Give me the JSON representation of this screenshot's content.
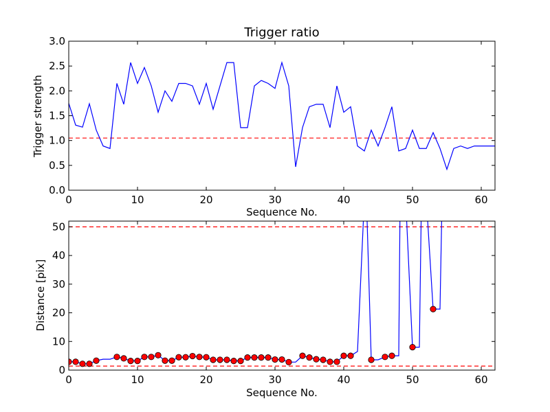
{
  "chart_data": [
    {
      "type": "line",
      "title": "Trigger ratio",
      "xlabel": "Sequence No.",
      "ylabel": "Trigger strength",
      "xlim": [
        0,
        62
      ],
      "ylim": [
        0,
        3.0
      ],
      "xticks": [
        0,
        10,
        20,
        30,
        40,
        50,
        60
      ],
      "yticks": [
        "0.0",
        "0.5",
        "1.0",
        "1.5",
        "2.0",
        "2.5",
        "3.0"
      ],
      "grid": false,
      "series": [
        {
          "color": "#0000ff",
          "x": [
            0,
            1,
            2,
            3,
            4,
            5,
            6,
            7,
            8,
            9,
            10,
            11,
            12,
            13,
            14,
            15,
            16,
            17,
            18,
            19,
            20,
            21,
            22,
            23,
            24,
            25,
            26,
            27,
            28,
            29,
            30,
            31,
            32,
            33,
            34,
            35,
            36,
            37,
            38,
            39,
            40,
            41,
            42,
            43,
            44,
            45,
            46,
            47,
            48,
            49,
            50,
            51,
            52,
            53,
            54,
            55,
            56,
            57,
            58,
            59,
            60,
            61,
            62
          ],
          "y": [
            1.75,
            1.31,
            1.27,
            1.74,
            1.21,
            0.89,
            0.84,
            2.15,
            1.73,
            2.57,
            2.15,
            2.47,
            2.1,
            1.57,
            2.0,
            1.79,
            2.15,
            2.15,
            2.1,
            1.73,
            2.15,
            1.63,
            2.1,
            2.57,
            2.57,
            1.26,
            1.26,
            2.1,
            2.21,
            2.15,
            2.05,
            2.57,
            2.1,
            0.47,
            1.26,
            1.68,
            1.73,
            1.73,
            1.26,
            2.1,
            1.57,
            1.68,
            0.89,
            0.79,
            1.21,
            0.89,
            1.26,
            1.68,
            0.79,
            0.84,
            1.21,
            0.84,
            0.84,
            1.16,
            0.84,
            0.42,
            0.84,
            0.89,
            0.84,
            0.89,
            0.89,
            0.89,
            0.89
          ]
        }
      ],
      "hlines": [
        {
          "y": 1.05,
          "color": "#ff0000",
          "style": "dashed"
        }
      ]
    },
    {
      "type": "line",
      "title": "",
      "xlabel": "Sequence No.",
      "ylabel": "Distance [pix]",
      "xlim": [
        0,
        62
      ],
      "ylim": [
        0,
        52
      ],
      "xticks": [
        0,
        10,
        20,
        30,
        40,
        50,
        60
      ],
      "yticks": [
        0,
        10,
        20,
        30,
        40,
        50
      ],
      "grid": false,
      "series": [
        {
          "color": "#0000ff",
          "x": [
            0,
            1,
            2,
            3,
            4,
            5,
            6,
            7,
            8,
            9,
            10,
            11,
            12,
            13,
            14,
            15,
            16,
            17,
            18,
            19,
            20,
            21,
            22,
            23,
            24,
            25,
            26,
            27,
            28,
            29,
            30,
            31,
            32,
            33,
            34,
            35,
            36,
            37,
            38,
            39,
            40,
            41,
            42,
            43,
            43.3,
            44,
            45,
            46,
            47,
            48,
            48.2,
            49,
            50,
            51,
            51.3,
            52,
            53,
            54,
            54.3
          ],
          "y": [
            2.9,
            2.9,
            2.2,
            2.2,
            3.3,
            3.8,
            3.8,
            4.6,
            4.1,
            3.2,
            3.2,
            4.6,
            4.6,
            5.2,
            3.3,
            3.3,
            4.5,
            4.5,
            4.9,
            4.6,
            4.5,
            3.6,
            3.6,
            3.6,
            3.2,
            3.2,
            4.4,
            4.4,
            4.4,
            4.4,
            3.7,
            3.7,
            2.8,
            2.8,
            5.0,
            4.4,
            3.8,
            3.6,
            2.9,
            2.9,
            5.0,
            5.0,
            6.5,
            60,
            60,
            3.6,
            3.6,
            4.6,
            5.0,
            5.0,
            60,
            60,
            8.0,
            8.0,
            60,
            60,
            21.3,
            21.3,
            60
          ]
        }
      ],
      "markers": {
        "color": "#ff0000",
        "x": [
          0,
          1,
          2,
          3,
          4,
          7,
          8,
          9,
          10,
          11,
          12,
          13,
          14,
          15,
          16,
          17,
          18,
          19,
          20,
          21,
          22,
          23,
          24,
          25,
          26,
          27,
          28,
          29,
          30,
          31,
          32,
          34,
          35,
          36,
          37,
          38,
          39,
          40,
          41,
          44,
          46,
          47,
          50,
          53
        ],
        "y": [
          2.9,
          2.9,
          2.2,
          2.2,
          3.3,
          4.6,
          4.1,
          3.2,
          3.2,
          4.6,
          4.6,
          5.2,
          3.3,
          3.3,
          4.5,
          4.5,
          4.9,
          4.6,
          4.5,
          3.6,
          3.6,
          3.6,
          3.2,
          3.2,
          4.4,
          4.4,
          4.4,
          4.4,
          3.7,
          3.7,
          2.8,
          5.0,
          4.4,
          3.8,
          3.6,
          2.9,
          2.9,
          5.0,
          5.0,
          3.6,
          4.6,
          5.0,
          8.0,
          21.3
        ]
      },
      "hlines": [
        {
          "y": 50,
          "color": "#ff0000",
          "style": "dashed"
        },
        {
          "y": 1.4,
          "color": "#ff0000",
          "style": "dashed"
        }
      ]
    }
  ]
}
